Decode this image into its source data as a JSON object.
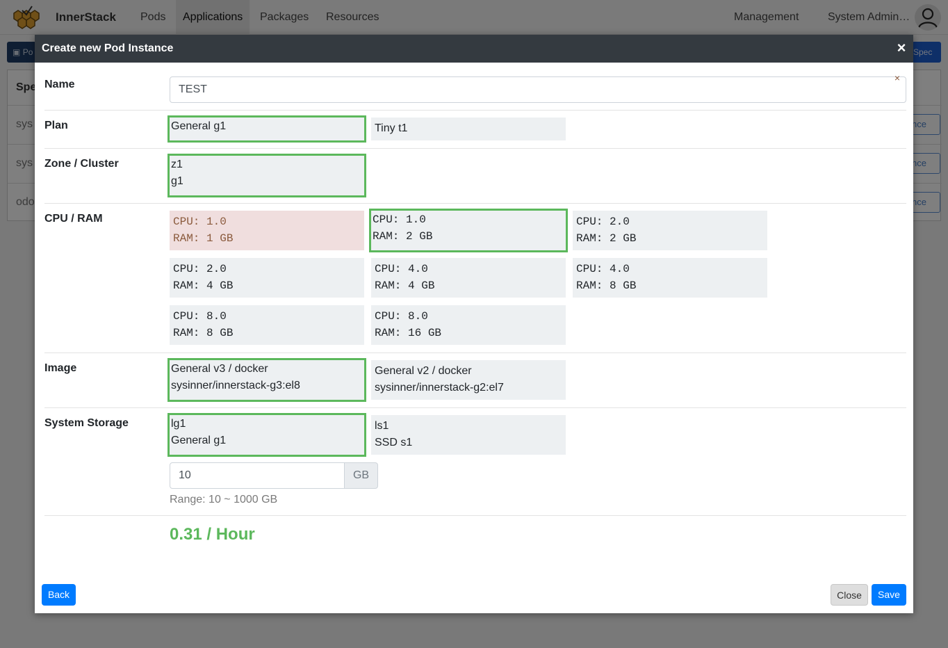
{
  "brand": "InnerStack",
  "nav": {
    "items": [
      "Pods",
      "Applications",
      "Packages",
      "Resources"
    ],
    "active": "Applications",
    "management": "Management",
    "user": "System Admin…"
  },
  "background": {
    "toolbar_left": "Po",
    "toolbar_right": "Spec",
    "card_header": "Spe",
    "rows": [
      {
        "text": "sys",
        "button": "nce"
      },
      {
        "text": "sys",
        "button": "nce"
      },
      {
        "text": "odo",
        "button": "nce"
      }
    ]
  },
  "modal": {
    "title": "Create new Pod Instance",
    "close_glyph": "×",
    "name": {
      "label": "Name",
      "value": "TEST",
      "clear_glyph": "×"
    },
    "plan": {
      "label": "Plan",
      "options": [
        {
          "text": "General g1",
          "selected": true
        },
        {
          "text": "Tiny t1",
          "selected": false
        }
      ]
    },
    "zone": {
      "label": "Zone / Cluster",
      "options": [
        {
          "line1": "z1",
          "line2": "g1",
          "selected": true
        }
      ]
    },
    "cpu_ram": {
      "label": "CPU / RAM",
      "options": [
        {
          "cpu": "CPU: 1.0",
          "ram": "RAM: 1 GB",
          "selected": false,
          "unavailable": true
        },
        {
          "cpu": "CPU: 1.0",
          "ram": "RAM: 2 GB",
          "selected": true
        },
        {
          "cpu": "CPU: 2.0",
          "ram": "RAM: 2 GB",
          "selected": false
        },
        {
          "cpu": "CPU: 2.0",
          "ram": "RAM: 4 GB",
          "selected": false
        },
        {
          "cpu": "CPU: 4.0",
          "ram": "RAM: 4 GB",
          "selected": false
        },
        {
          "cpu": "CPU: 4.0",
          "ram": "RAM: 8 GB",
          "selected": false
        },
        {
          "cpu": "CPU: 8.0",
          "ram": "RAM: 8 GB",
          "selected": false
        },
        {
          "cpu": "CPU: 8.0",
          "ram": "RAM: 16 GB",
          "selected": false
        }
      ]
    },
    "image": {
      "label": "Image",
      "options": [
        {
          "line1": "General v3 / docker",
          "line2": "sysinner/innerstack-g3:el8",
          "selected": true
        },
        {
          "line1": "General v2 / docker",
          "line2": "sysinner/innerstack-g2:el7",
          "selected": false
        }
      ]
    },
    "storage": {
      "label": "System Storage",
      "options": [
        {
          "line1": "lg1",
          "line2": "General g1",
          "selected": true
        },
        {
          "line1": "ls1",
          "line2": "SSD s1",
          "selected": false
        }
      ],
      "size_value": "10",
      "size_unit": "GB",
      "range_hint": "Range: 10 ~ 1000 GB"
    },
    "price": "0.31 / Hour",
    "buttons": {
      "back": "Back",
      "close": "Close",
      "save": "Save"
    }
  },
  "colors": {
    "selected_border": "#5cb85c",
    "primary": "#007bff",
    "header_bg": "#343a40",
    "option_bg": "#edf0f2",
    "unavailable_bg": "#f0dede"
  }
}
